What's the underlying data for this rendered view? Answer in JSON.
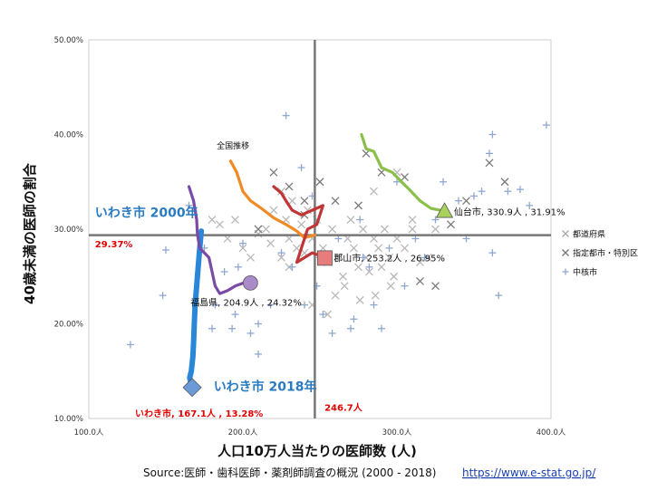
{
  "chart_data": {
    "type": "scatter",
    "xlim": [
      100,
      400
    ],
    "ylim": [
      10,
      50
    ],
    "x_ticks": [
      {
        "v": 100,
        "label": "100.0人"
      },
      {
        "v": 200,
        "label": "200.0人"
      },
      {
        "v": 300,
        "label": "300.0人"
      },
      {
        "v": 400,
        "label": "400.0人"
      }
    ],
    "y_ticks": [
      {
        "v": 10,
        "label": "10.00%"
      },
      {
        "v": 20,
        "label": "20.00%"
      },
      {
        "v": 30,
        "label": "30.00%"
      },
      {
        "v": 40,
        "label": "40.00%"
      },
      {
        "v": 50,
        "label": "50.00%"
      }
    ],
    "xlabel": "人口10万人当たりの医師数 (人)",
    "ylabel": "40歳未満の医師の割合",
    "source_text": "Source:医師・歯科医師・薬剤師調査の概況 (2000 - 2018)",
    "source_url": "https://www.e-stat.go.jp/",
    "reference_lines": {
      "x": 246.7,
      "x_label": "246.7人",
      "y": 29.37,
      "y_label": "29.37%"
    },
    "legend": [
      {
        "name": "都道府県",
        "marker": "x",
        "color": "#aaaaaa"
      },
      {
        "name": "指定都市・特別区",
        "marker": "x",
        "color": "#777777"
      },
      {
        "name": "中核市",
        "marker": "+",
        "color": "#8ea8d0"
      }
    ],
    "scatter_series": [
      {
        "name": "都道府県",
        "marker": "x",
        "color": "#b8b8b8",
        "points": [
          [
            180,
            31
          ],
          [
            185,
            30.5
          ],
          [
            190,
            29
          ],
          [
            195,
            31
          ],
          [
            200,
            28
          ],
          [
            205,
            27
          ],
          [
            210,
            29.5
          ],
          [
            215,
            30
          ],
          [
            218,
            28.5
          ],
          [
            220,
            32
          ],
          [
            225,
            27
          ],
          [
            228,
            31
          ],
          [
            230,
            29
          ],
          [
            232,
            33
          ],
          [
            235,
            28
          ],
          [
            238,
            30.5
          ],
          [
            240,
            27.5
          ],
          [
            242,
            32
          ],
          [
            245,
            29
          ],
          [
            248,
            31
          ],
          [
            252,
            28
          ],
          [
            255,
            26.5
          ],
          [
            258,
            30
          ],
          [
            262,
            27
          ],
          [
            265,
            25
          ],
          [
            268,
            29
          ],
          [
            270,
            31
          ],
          [
            272,
            28
          ],
          [
            275,
            26
          ],
          [
            278,
            30
          ],
          [
            280,
            27
          ],
          [
            282,
            25.5
          ],
          [
            285,
            29
          ],
          [
            288,
            28
          ],
          [
            290,
            26
          ],
          [
            292,
            30
          ],
          [
            295,
            27
          ],
          [
            298,
            25
          ],
          [
            300,
            29
          ],
          [
            305,
            28
          ],
          [
            310,
            30
          ],
          [
            315,
            26.5
          ],
          [
            320,
            27
          ],
          [
            325,
            30
          ],
          [
            260,
            23
          ],
          [
            266,
            24
          ],
          [
            276,
            22.5
          ],
          [
            286,
            23
          ],
          [
            296,
            24
          ],
          [
            255,
            21
          ],
          [
            245,
            22
          ],
          [
            230,
            26
          ],
          [
            225,
            34
          ],
          [
            300,
            36
          ],
          [
            285,
            34
          ],
          [
            310,
            31
          ]
        ]
      },
      {
        "name": "指定都市・特別区",
        "marker": "x",
        "color": "#7a7a7a",
        "points": [
          [
            220,
            36
          ],
          [
            230,
            34.5
          ],
          [
            240,
            33
          ],
          [
            250,
            35
          ],
          [
            280,
            38
          ],
          [
            290,
            36
          ],
          [
            305,
            35.5
          ],
          [
            335,
            30.5
          ],
          [
            345,
            33
          ],
          [
            360,
            37
          ],
          [
            370,
            35
          ],
          [
            240,
            31.5
          ],
          [
            260,
            33
          ],
          [
            275,
            32.5
          ],
          [
            315,
            24.5
          ],
          [
            325,
            24
          ],
          [
            210,
            30
          ]
        ]
      },
      {
        "name": "中核市",
        "marker": "+",
        "color": "#8ea8d0",
        "points": [
          [
            127,
            17.8
          ],
          [
            148,
            23
          ],
          [
            150,
            27.8
          ],
          [
            165,
            32.5
          ],
          [
            175,
            28
          ],
          [
            180,
            19.5
          ],
          [
            182,
            22
          ],
          [
            188,
            25.5
          ],
          [
            193,
            19.5
          ],
          [
            195,
            21
          ],
          [
            197,
            26
          ],
          [
            200,
            28.5
          ],
          [
            205,
            19
          ],
          [
            210,
            20
          ],
          [
            210,
            16.8
          ],
          [
            218,
            22
          ],
          [
            225,
            27.5
          ],
          [
            228,
            42
          ],
          [
            232,
            26
          ],
          [
            238,
            36.5
          ],
          [
            240,
            22
          ],
          [
            245,
            33.5
          ],
          [
            248,
            24
          ],
          [
            250,
            27
          ],
          [
            252,
            21
          ],
          [
            258,
            19
          ],
          [
            262,
            29
          ],
          [
            270,
            19.5
          ],
          [
            272,
            20.5
          ],
          [
            276,
            31
          ],
          [
            278,
            27
          ],
          [
            282,
            26
          ],
          [
            285,
            22
          ],
          [
            290,
            19.5
          ],
          [
            295,
            28
          ],
          [
            300,
            35
          ],
          [
            305,
            24
          ],
          [
            312,
            29
          ],
          [
            318,
            27
          ],
          [
            325,
            31
          ],
          [
            330,
            35
          ],
          [
            340,
            33
          ],
          [
            345,
            29
          ],
          [
            350,
            33.5
          ],
          [
            355,
            34
          ],
          [
            360,
            38
          ],
          [
            362,
            40
          ],
          [
            362,
            27.5
          ],
          [
            366,
            23
          ],
          [
            372,
            34
          ],
          [
            380,
            34.2
          ],
          [
            386,
            32.5
          ],
          [
            397,
            41
          ]
        ]
      }
    ],
    "trend_lines": [
      {
        "name": "全国推移",
        "color": "#f08a24",
        "points": [
          [
            192,
            37.2
          ],
          [
            196,
            36
          ],
          [
            198,
            35
          ],
          [
            200,
            34
          ],
          [
            205,
            33
          ],
          [
            212,
            32.2
          ],
          [
            220,
            31.2
          ],
          [
            228,
            30.5
          ],
          [
            235,
            29.8
          ],
          [
            240,
            29.1
          ],
          [
            246.7,
            29.37
          ]
        ]
      },
      {
        "name": "いわき市",
        "color": "#2a86d8",
        "width": 6,
        "points": [
          [
            173,
            29.8
          ],
          [
            172,
            28
          ],
          [
            171,
            26
          ],
          [
            170,
            24
          ],
          [
            169,
            22
          ],
          [
            168.5,
            20
          ],
          [
            168,
            18
          ],
          [
            167.5,
            16.5
          ],
          [
            166.5,
            15
          ],
          [
            165.5,
            14.3
          ],
          [
            167.1,
            13.28
          ]
        ]
      },
      {
        "name": "福島県",
        "color": "#7b4aa5",
        "points": [
          [
            165,
            34.5
          ],
          [
            168,
            33
          ],
          [
            170,
            31
          ],
          [
            170.5,
            29.5
          ],
          [
            172,
            28
          ],
          [
            175,
            27.5
          ],
          [
            178,
            27
          ],
          [
            180,
            25.5
          ],
          [
            182,
            24
          ],
          [
            185,
            23.2
          ],
          [
            190,
            23.5
          ],
          [
            195,
            24
          ],
          [
            200,
            24.3
          ],
          [
            204.9,
            24.32
          ]
        ]
      },
      {
        "name": "郡山市",
        "color": "#c03535",
        "points": [
          [
            220,
            34.5
          ],
          [
            225,
            33.8
          ],
          [
            228,
            33
          ],
          [
            232,
            32
          ],
          [
            238,
            31.5
          ],
          [
            245,
            32
          ],
          [
            252,
            32.5
          ],
          [
            248,
            30.5
          ],
          [
            242,
            30
          ],
          [
            238,
            28
          ],
          [
            235,
            26.5
          ],
          [
            240,
            27
          ],
          [
            245,
            27.5
          ],
          [
            250,
            27.2
          ],
          [
            253.2,
            26.95
          ]
        ]
      },
      {
        "name": "仙台市",
        "color": "#8abf4a",
        "points": [
          [
            277,
            40
          ],
          [
            280,
            38.5
          ],
          [
            285,
            38.2
          ],
          [
            290,
            36.5
          ],
          [
            297,
            36
          ],
          [
            303,
            35
          ],
          [
            308,
            34.2
          ],
          [
            315,
            33
          ],
          [
            322,
            32.2
          ],
          [
            328,
            32
          ],
          [
            330.9,
            31.91
          ]
        ]
      }
    ],
    "end_markers": [
      {
        "name": "いわき市",
        "shape": "diamond",
        "color": "#6a9bd8",
        "x": 167.1,
        "y": 13.28
      },
      {
        "name": "福島県",
        "shape": "circle",
        "color": "#a88bc8",
        "x": 204.9,
        "y": 24.32
      },
      {
        "name": "郡山市",
        "shape": "square",
        "color": "#e67c7c",
        "x": 253.2,
        "y": 26.95
      },
      {
        "name": "仙台市",
        "shape": "triangle",
        "color": "#a9d15c",
        "x": 330.9,
        "y": 31.91
      }
    ],
    "annotations": [
      {
        "text": "全国推移",
        "x": 183,
        "y": 38.5,
        "style": "small"
      },
      {
        "text": "いわき市 2000年",
        "x": 104,
        "y": 31.3,
        "style": "big-blue"
      },
      {
        "text": "いわき市 2018年",
        "x": 181,
        "y": 12.9,
        "style": "big-blue"
      },
      {
        "text": "29.37%",
        "x": 104,
        "y": 28.1,
        "style": "red"
      },
      {
        "text": "246.7人",
        "x": 253,
        "y": 10.8,
        "style": "red"
      },
      {
        "text": "いわき市, 167.1人 , 13.28%",
        "x": 130,
        "y": 10.2,
        "style": "red"
      },
      {
        "text": "福島県, 204.9人 , 24.32%",
        "x": 166,
        "y": 21.9,
        "style": "lbl"
      },
      {
        "text": "郡山市, 253.2人 , 26.95%",
        "x": 259,
        "y": 26.6,
        "style": "lbl"
      },
      {
        "text": "仙台市, 330.9人 , 31.91%",
        "x": 337,
        "y": 31.5,
        "style": "lbl"
      }
    ]
  }
}
